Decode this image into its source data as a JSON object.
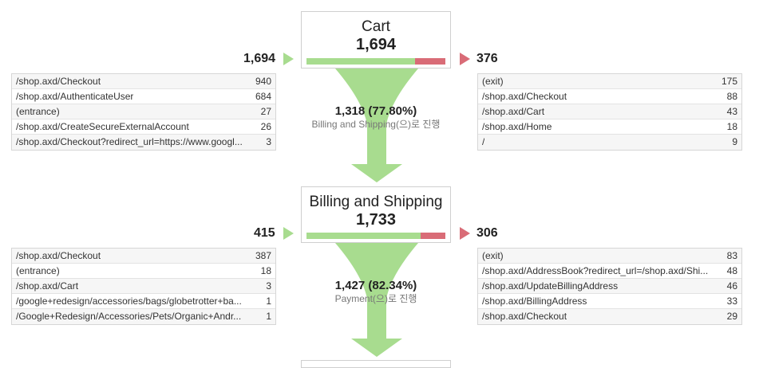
{
  "steps": [
    {
      "title": "Cart",
      "value": "1,694",
      "entrances": "1,694",
      "exits": "376",
      "progress_fraction": 0.78,
      "sources": [
        {
          "label": "/shop.axd/Checkout",
          "count": "940"
        },
        {
          "label": "/shop.axd/AuthenticateUser",
          "count": "684"
        },
        {
          "label": "(entrance)",
          "count": "27"
        },
        {
          "label": "/shop.axd/CreateSecureExternalAccount",
          "count": "26"
        },
        {
          "label": "/shop.axd/Checkout?redirect_url=https://www.googl...",
          "count": "3"
        }
      ],
      "destinations": [
        {
          "label": "(exit)",
          "count": "175"
        },
        {
          "label": "/shop.axd/Checkout",
          "count": "88"
        },
        {
          "label": "/shop.axd/Cart",
          "count": "43"
        },
        {
          "label": "/shop.axd/Home",
          "count": "18"
        },
        {
          "label": "/",
          "count": "9"
        }
      ],
      "flow": {
        "main": "1,318 (77.80%)",
        "sub": "Billing and Shipping(으)로 진행"
      }
    },
    {
      "title": "Billing and Shipping",
      "value": "1,733",
      "entrances": "415",
      "exits": "306",
      "progress_fraction": 0.82,
      "sources": [
        {
          "label": "/shop.axd/Checkout",
          "count": "387"
        },
        {
          "label": "(entrance)",
          "count": "18"
        },
        {
          "label": "/shop.axd/Cart",
          "count": "3"
        },
        {
          "label": "/google+redesign/accessories/bags/globetrotter+ba...",
          "count": "1"
        },
        {
          "label": "/Google+Redesign/Accessories/Pets/Organic+Andr...",
          "count": "1"
        }
      ],
      "destinations": [
        {
          "label": "(exit)",
          "count": "83"
        },
        {
          "label": "/shop.axd/AddressBook?redirect_url=/shop.axd/Shi...",
          "count": "48"
        },
        {
          "label": "/shop.axd/UpdateBillingAddress",
          "count": "46"
        },
        {
          "label": "/shop.axd/BillingAddress",
          "count": "33"
        },
        {
          "label": "/shop.axd/Checkout",
          "count": "29"
        }
      ],
      "flow": {
        "main": "1,427 (82.34%)",
        "sub": "Payment(으)로 진행"
      }
    }
  ],
  "colors": {
    "progress": "#a8dc8f",
    "exit": "#d96c77"
  }
}
